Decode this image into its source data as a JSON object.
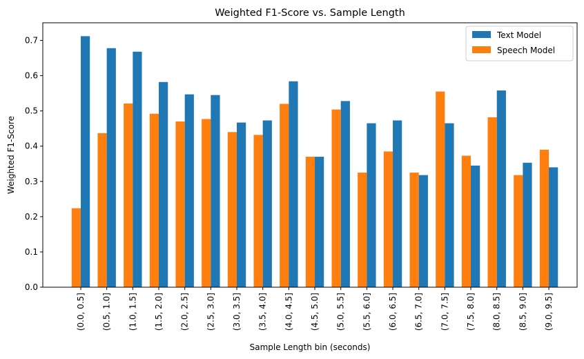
{
  "chart_data": {
    "type": "bar",
    "title": "Weighted F1-Score vs. Sample Length",
    "xlabel": "Sample Length bin (seconds)",
    "ylabel": "Weighted F1-Score",
    "ylim": [
      0,
      0.75
    ],
    "yticks": [
      "0.0",
      "0.1",
      "0.2",
      "0.3",
      "0.4",
      "0.5",
      "0.6",
      "0.7"
    ],
    "grid": false,
    "legend_position": "top-right",
    "categories": [
      "(0.0, 0.5]",
      "(0.5, 1.0]",
      "(1.0, 1.5]",
      "(1.5, 2.0]",
      "(2.0, 2.5]",
      "(2.5, 3.0]",
      "(3.0, 3.5]",
      "(3.5, 4.0]",
      "(4.0, 4.5]",
      "(4.5, 5.0]",
      "(5.0, 5.5]",
      "(5.5, 6.0]",
      "(6.0, 6.5]",
      "(6.5, 7.0]",
      "(7.0, 7.5]",
      "(7.5, 8.0]",
      "(8.0, 8.5]",
      "(8.5, 9.0]",
      "(9.0, 9.5]"
    ],
    "series": [
      {
        "name": "Text Model",
        "color": "#1f77b4",
        "values": [
          0.712,
          0.678,
          0.668,
          0.582,
          0.547,
          0.545,
          0.467,
          0.473,
          0.584,
          0.37,
          0.528,
          0.465,
          0.473,
          0.318,
          0.465,
          0.345,
          0.558,
          0.353,
          0.34
        ]
      },
      {
        "name": "Speech Model",
        "color": "#ff7f0e",
        "values": [
          0.224,
          0.437,
          0.521,
          0.492,
          0.47,
          0.477,
          0.44,
          0.432,
          0.52,
          0.37,
          0.504,
          0.325,
          0.385,
          0.325,
          0.555,
          0.373,
          0.482,
          0.318,
          0.39
        ]
      }
    ]
  }
}
